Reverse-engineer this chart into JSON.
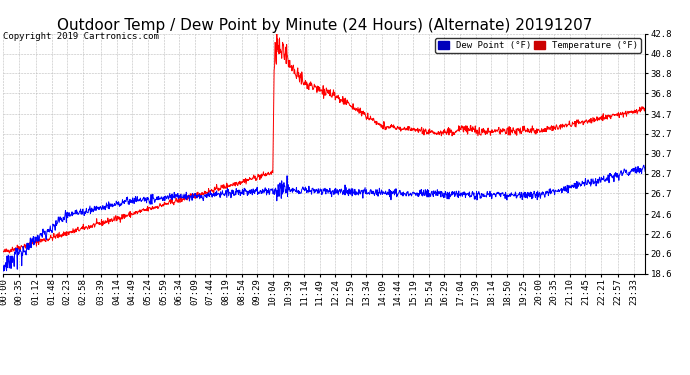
{
  "title": "Outdoor Temp / Dew Point by Minute (24 Hours) (Alternate) 20191207",
  "copyright": "Copyright 2019 Cartronics.com",
  "legend_dew": "Dew Point (°F)",
  "legend_temp": "Temperature (°F)",
  "ylim": [
    18.6,
    42.8
  ],
  "yticks": [
    18.6,
    20.6,
    22.6,
    24.6,
    26.7,
    28.7,
    30.7,
    32.7,
    34.7,
    36.8,
    38.8,
    40.8,
    42.8
  ],
  "bg_color": "#ffffff",
  "grid_color": "#bbbbbb",
  "temp_color": "#ff0000",
  "dew_color": "#0000ff",
  "title_fontsize": 11,
  "copyright_fontsize": 6.5,
  "tick_fontsize": 6.5,
  "n_minutes": 1440,
  "xtick_minutes": [
    0,
    35,
    72,
    108,
    143,
    178,
    219,
    254,
    289,
    324,
    359,
    394,
    429,
    464,
    499,
    534,
    569,
    604,
    639,
    674,
    709,
    744,
    779,
    814,
    849,
    884,
    919,
    954,
    989,
    1024,
    1059,
    1094,
    1130,
    1165,
    1200,
    1235,
    1270,
    1305,
    1341,
    1377,
    1413
  ],
  "xtick_labels": [
    "00:00",
    "00:35",
    "01:12",
    "01:48",
    "02:23",
    "02:58",
    "03:39",
    "04:14",
    "04:49",
    "05:24",
    "05:59",
    "06:34",
    "07:09",
    "07:44",
    "08:19",
    "08:54",
    "09:29",
    "10:04",
    "10:39",
    "11:14",
    "11:49",
    "12:24",
    "12:59",
    "13:34",
    "14:09",
    "14:44",
    "15:19",
    "15:54",
    "16:29",
    "17:04",
    "17:39",
    "18:14",
    "18:50",
    "19:25",
    "20:00",
    "20:35",
    "21:10",
    "21:45",
    "22:21",
    "22:57",
    "23:33"
  ]
}
